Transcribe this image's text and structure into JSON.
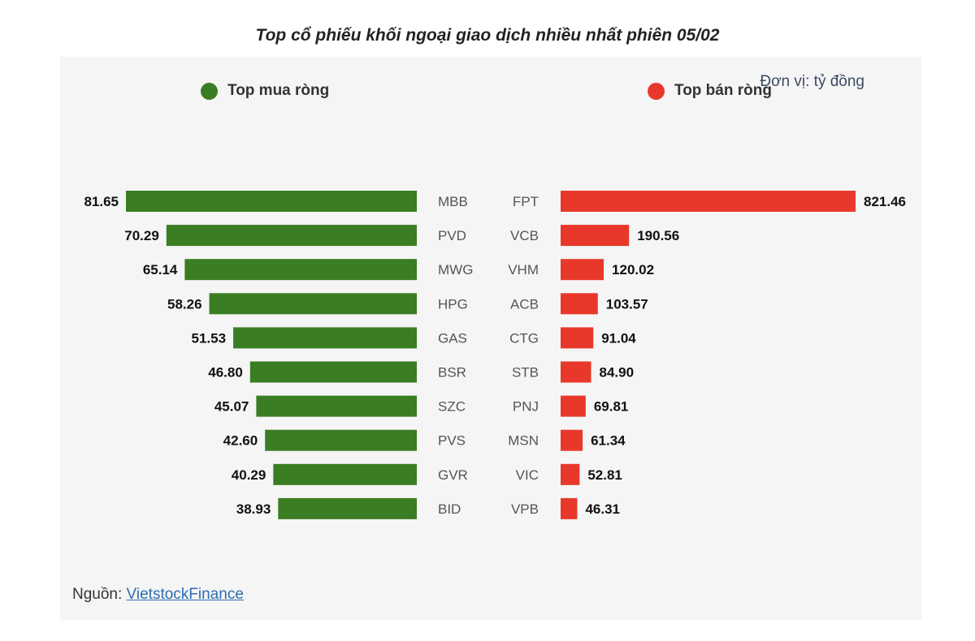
{
  "title": "Top cổ phiếu khối ngoại giao dịch nhiều nhất phiên 05/02",
  "unit": "Đơn vị: tỷ đồng",
  "source_prefix": "Nguồn: ",
  "source_link": "VietstockFinance",
  "colors": {
    "buy": "#3a7d23",
    "sell": "#e8382b",
    "panel": "#f5f5f5"
  },
  "chart_data": [
    {
      "type": "bar",
      "orientation": "horizontal",
      "legend": "Top mua ròng",
      "categories": [
        "MBB",
        "PVD",
        "MWG",
        "HPG",
        "GAS",
        "BSR",
        "SZC",
        "PVS",
        "GVR",
        "BID"
      ],
      "values": [
        81.65,
        70.29,
        65.14,
        58.26,
        51.53,
        46.8,
        45.07,
        42.6,
        40.29,
        38.93
      ],
      "labels": [
        "81.65",
        "70.29",
        "65.14",
        "58.26",
        "51.53",
        "46.80",
        "45.07",
        "42.60",
        "40.29",
        "38.93"
      ]
    },
    {
      "type": "bar",
      "orientation": "horizontal",
      "legend": "Top bán ròng",
      "categories": [
        "FPT",
        "VCB",
        "VHM",
        "ACB",
        "CTG",
        "STB",
        "PNJ",
        "MSN",
        "VIC",
        "VPB"
      ],
      "values": [
        821.46,
        190.56,
        120.02,
        103.57,
        91.04,
        84.9,
        69.81,
        61.34,
        52.81,
        46.31
      ],
      "labels": [
        "821.46",
        "190.56",
        "120.02",
        "103.57",
        "91.04",
        "84.90",
        "69.81",
        "61.34",
        "52.81",
        "46.31"
      ]
    }
  ]
}
